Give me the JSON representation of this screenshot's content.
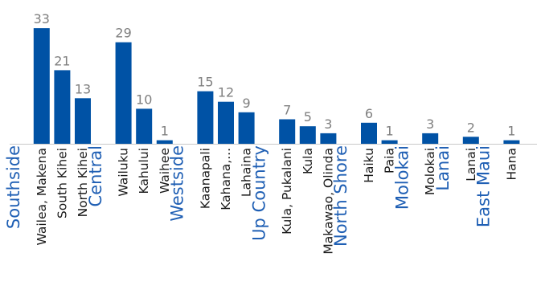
{
  "chart_data": {
    "type": "bar",
    "bar_color": "#0052a5",
    "group_label_color": "#1f5fb4",
    "value_label_color": "#7f7f7f",
    "axis_color": "#c8c8c8",
    "ylim": [
      0,
      35
    ],
    "groups": [
      {
        "name": "Southside",
        "categories": [
          "Wailea, Makena",
          "South Kihei",
          "North Kihei"
        ],
        "values": [
          33,
          21,
          13
        ]
      },
      {
        "name": "Central",
        "categories": [
          "Wailuku",
          "Kahului",
          "Waihee"
        ],
        "values": [
          29,
          10,
          1
        ]
      },
      {
        "name": "Westside",
        "categories": [
          "Kaanapali",
          "Kahana,...",
          "Lahaina"
        ],
        "values": [
          15,
          12,
          9
        ]
      },
      {
        "name": "Up Country",
        "categories": [
          "Kula, Pukalani",
          "Kula",
          "Makawao, Olinda"
        ],
        "values": [
          7,
          5,
          3
        ]
      },
      {
        "name": "North Shore",
        "categories": [
          "Haiku",
          "Paia"
        ],
        "values": [
          6,
          1
        ]
      },
      {
        "name": "Molokai",
        "categories": [
          "Molokai"
        ],
        "values": [
          3
        ]
      },
      {
        "name": "Lanai",
        "categories": [
          "Lanai"
        ],
        "values": [
          2
        ]
      },
      {
        "name": "East Maui",
        "categories": [
          "Hana"
        ],
        "values": [
          1
        ]
      }
    ]
  }
}
